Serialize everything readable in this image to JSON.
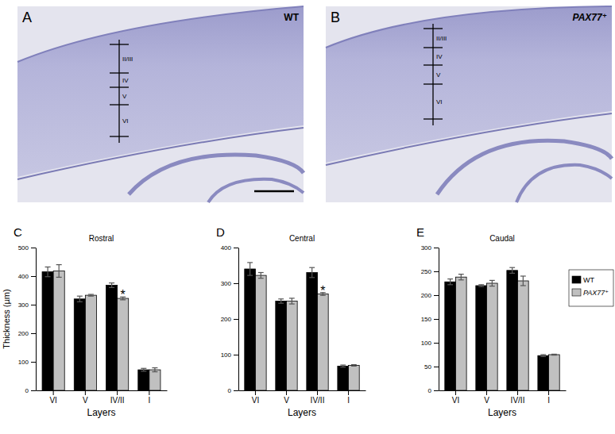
{
  "images": [
    {
      "label": "A",
      "title": "WT",
      "layers": [
        "II/III",
        "IV",
        "V",
        "VI"
      ]
    },
    {
      "label": "B",
      "title": "PAX77⁺",
      "layers": [
        "II/III",
        "IV",
        "V",
        "VI"
      ]
    }
  ],
  "chart_data": [
    {
      "type": "bar",
      "label": "C",
      "title": "Rostral",
      "x_label": "Layers",
      "y_label": "Thickness (µm)",
      "categories": [
        "VI",
        "V",
        "IV/II",
        "I"
      ],
      "series": [
        {
          "name": "WT",
          "color": "#000000",
          "values": [
            415,
            320,
            368,
            72
          ],
          "errors": [
            17,
            10,
            8,
            5
          ]
        },
        {
          "name": "PAX77⁺",
          "color": "#c0c0c0",
          "values": [
            418,
            333,
            322,
            72
          ],
          "errors": [
            22,
            3,
            5,
            7
          ]
        }
      ],
      "ylim": [
        0,
        500
      ],
      "yticks": [
        0,
        100,
        200,
        300,
        400,
        500
      ],
      "annotations": [
        {
          "text": "*",
          "category": "IV/II",
          "series": "PAX77⁺"
        }
      ]
    },
    {
      "type": "bar",
      "label": "D",
      "title": "Central",
      "x_label": "Layers",
      "categories": [
        "VI",
        "V",
        "IV/II",
        "I"
      ],
      "series": [
        {
          "name": "WT",
          "color": "#000000",
          "values": [
            340,
            250,
            330,
            68
          ],
          "errors": [
            18,
            6,
            14,
            3
          ]
        },
        {
          "name": "PAX77⁺",
          "color": "#c0c0c0",
          "values": [
            322,
            250,
            270,
            70
          ],
          "errors": [
            8,
            8,
            4,
            2
          ]
        }
      ],
      "ylim": [
        0,
        400
      ],
      "yticks": [
        0,
        100,
        200,
        300,
        400
      ],
      "annotations": [
        {
          "text": "*",
          "category": "IV/II",
          "series": "PAX77⁺"
        }
      ]
    },
    {
      "type": "bar",
      "label": "E",
      "title": "Caudal",
      "x_label": "Layers",
      "categories": [
        "VI",
        "V",
        "IV/II",
        "I"
      ],
      "series": [
        {
          "name": "WT",
          "color": "#000000",
          "values": [
            228,
            220,
            252,
            73
          ],
          "errors": [
            6,
            2,
            6,
            2
          ]
        },
        {
          "name": "PAX77⁺",
          "color": "#c0c0c0",
          "values": [
            238,
            225,
            230,
            75
          ],
          "errors": [
            6,
            6,
            10,
            1
          ]
        }
      ],
      "ylim": [
        0,
        300
      ],
      "yticks": [
        0,
        50,
        100,
        150,
        200,
        250,
        300
      ],
      "legend": "right"
    }
  ]
}
